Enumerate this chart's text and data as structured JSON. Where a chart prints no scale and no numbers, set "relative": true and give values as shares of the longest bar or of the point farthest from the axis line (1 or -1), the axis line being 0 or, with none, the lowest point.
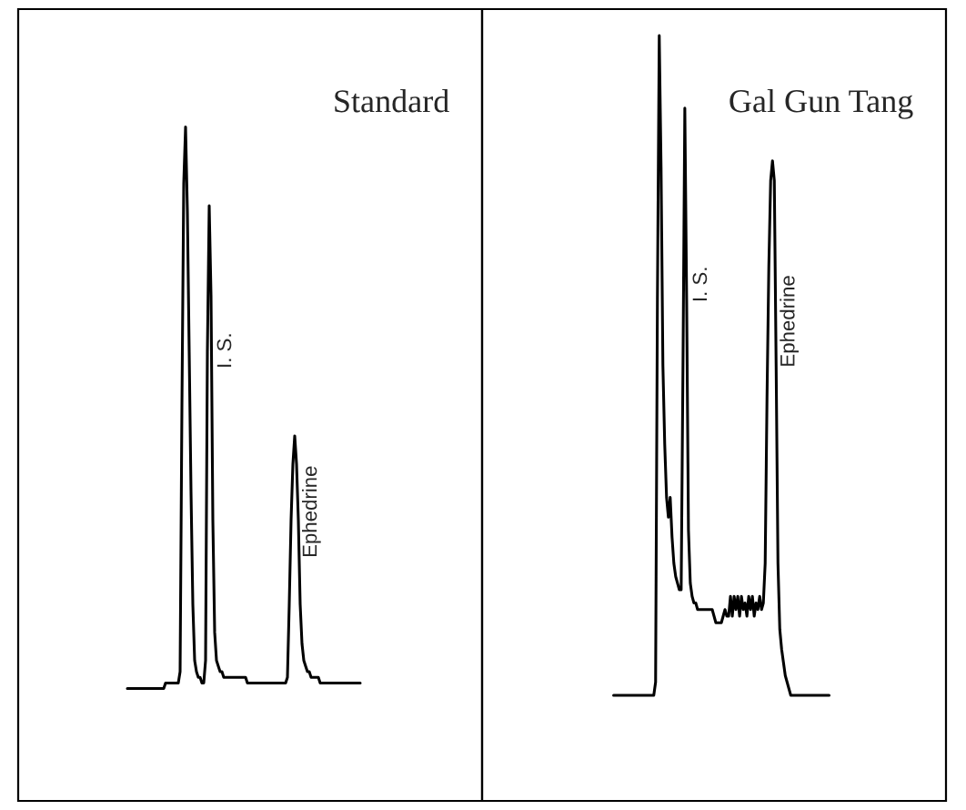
{
  "chart_data": [
    {
      "type": "line",
      "title": "Standard",
      "relative": true,
      "line_style": "solid",
      "categories": [
        null,
        null,
        null,
        null,
        null,
        null,
        null,
        null,
        null,
        null,
        null,
        null,
        null,
        null,
        null,
        null,
        null,
        null,
        null,
        null,
        null,
        null,
        null,
        null,
        null,
        null,
        null,
        null,
        null,
        null,
        null,
        null,
        null,
        null,
        null,
        null,
        null,
        null,
        null,
        null,
        null,
        null,
        null,
        null,
        null,
        null,
        null,
        null,
        null,
        null,
        null,
        null,
        null,
        null,
        null,
        null,
        null,
        null,
        null,
        null,
        null,
        null,
        null,
        null,
        null,
        null,
        null,
        null,
        null,
        null,
        null,
        null,
        null,
        null,
        null,
        null,
        null,
        null,
        null,
        null,
        null,
        null,
        null,
        null,
        null,
        null,
        null,
        null,
        null,
        null,
        null,
        null,
        null,
        null,
        null,
        null,
        null,
        null,
        null,
        null,
        null,
        null,
        null,
        null,
        null,
        null,
        null,
        null,
        null,
        null,
        null,
        null,
        null,
        null,
        null,
        null,
        null,
        null,
        null,
        null,
        null,
        null,
        null,
        null,
        null,
        null,
        null,
        null,
        null
      ],
      "series": [
        {
          "color": "#000000",
          "values": [
            0,
            0,
            0,
            0,
            0,
            0,
            0,
            0,
            0,
            0,
            0,
            0,
            0,
            0,
            0,
            0,
            0,
            0,
            0,
            0,
            0,
            0.01,
            0.01,
            0.01,
            0.01,
            0.01,
            0.01,
            0.01,
            0.01,
            0.03,
            0.5,
            0.9,
            1.0,
            0.85,
            0.6,
            0.35,
            0.15,
            0.05,
            0.03,
            0.02,
            0.02,
            0.01,
            0.01,
            0.05,
            0.6,
            0.86,
            0.7,
            0.3,
            0.1,
            0.05,
            0.04,
            0.03,
            0.03,
            0.02,
            0.02,
            0.02,
            0.02,
            0.02,
            0.02,
            0.02,
            0.02,
            0.02,
            0.02,
            0.02,
            0.02,
            0.02,
            0.01,
            0.01,
            0.01,
            0.01,
            0.01,
            0.01,
            0.01,
            0.01,
            0.01,
            0.01,
            0.01,
            0.01,
            0.01,
            0.01,
            0.01,
            0.01,
            0.01,
            0.01,
            0.01,
            0.01,
            0.01,
            0.01,
            0.02,
            0.15,
            0.3,
            0.4,
            0.45,
            0.4,
            0.3,
            0.15,
            0.08,
            0.05,
            0.04,
            0.03,
            0.03,
            0.02,
            0.02,
            0.02,
            0.02,
            0.02,
            0.01,
            0.01,
            0.01,
            0.01,
            0.01,
            0.01,
            0.01,
            0.01,
            0.01,
            0.01,
            0.01,
            0.01,
            0.01,
            0.01,
            0.01,
            0.01,
            0.01,
            0.01,
            0.01,
            0.01,
            0.01,
            0.01,
            0.01
          ]
        }
      ],
      "annotations": [
        "I. S.",
        "Ephedrine"
      ]
    },
    {
      "type": "line",
      "title": "Gal Gun Tang",
      "relative": true,
      "line_style": "solid",
      "categories": [
        null,
        null,
        null,
        null,
        null,
        null,
        null,
        null,
        null,
        null,
        null,
        null,
        null,
        null,
        null,
        null,
        null,
        null,
        null,
        null,
        null,
        null,
        null,
        null,
        null,
        null,
        null,
        null,
        null,
        null,
        null,
        null,
        null,
        null,
        null,
        null,
        null,
        null,
        null,
        null,
        null,
        null,
        null,
        null,
        null,
        null,
        null,
        null,
        null,
        null,
        null,
        null,
        null,
        null,
        null,
        null,
        null,
        null,
        null,
        null,
        null,
        null,
        null,
        null,
        null,
        null,
        null,
        null,
        null,
        null,
        null,
        null,
        null,
        null,
        null,
        null,
        null,
        null,
        null,
        null,
        null,
        null,
        null,
        null,
        null,
        null,
        null,
        null,
        null,
        null,
        null,
        null,
        null,
        null,
        null,
        null,
        null,
        null,
        null,
        null,
        null,
        null,
        null,
        null,
        null,
        null,
        null,
        null,
        null,
        null,
        null,
        null,
        null,
        null,
        null,
        null,
        null,
        null,
        null
      ],
      "series": [
        {
          "color": "#000000",
          "values": [
            0,
            0,
            0,
            0,
            0,
            0,
            0,
            0,
            0,
            0,
            0,
            0,
            0,
            0,
            0,
            0,
            0,
            0,
            0,
            0,
            0,
            0,
            0,
            0.02,
            0.6,
            1.0,
            0.8,
            0.5,
            0.38,
            0.3,
            0.27,
            0.3,
            0.24,
            0.2,
            0.18,
            0.17,
            0.16,
            0.16,
            0.5,
            0.89,
            0.6,
            0.25,
            0.17,
            0.15,
            0.14,
            0.14,
            0.13,
            0.13,
            0.13,
            0.13,
            0.13,
            0.13,
            0.13,
            0.13,
            0.13,
            0.12,
            0.11,
            0.11,
            0.11,
            0.11,
            0.12,
            0.13,
            0.12,
            0.12,
            0.15,
            0.12,
            0.15,
            0.13,
            0.15,
            0.12,
            0.15,
            0.13,
            0.14,
            0.12,
            0.15,
            0.13,
            0.15,
            0.12,
            0.14,
            0.13,
            0.15,
            0.13,
            0.14,
            0.2,
            0.45,
            0.65,
            0.78,
            0.81,
            0.78,
            0.5,
            0.2,
            0.1,
            0.07,
            0.05,
            0.03,
            0.02,
            0.01,
            0,
            0,
            0,
            0,
            0,
            0,
            0,
            0,
            0,
            0,
            0,
            0,
            0,
            0,
            0,
            0,
            0,
            0,
            0,
            0,
            0,
            0
          ]
        }
      ],
      "annotations": [
        "I. S.",
        "Ephedrine"
      ]
    }
  ]
}
